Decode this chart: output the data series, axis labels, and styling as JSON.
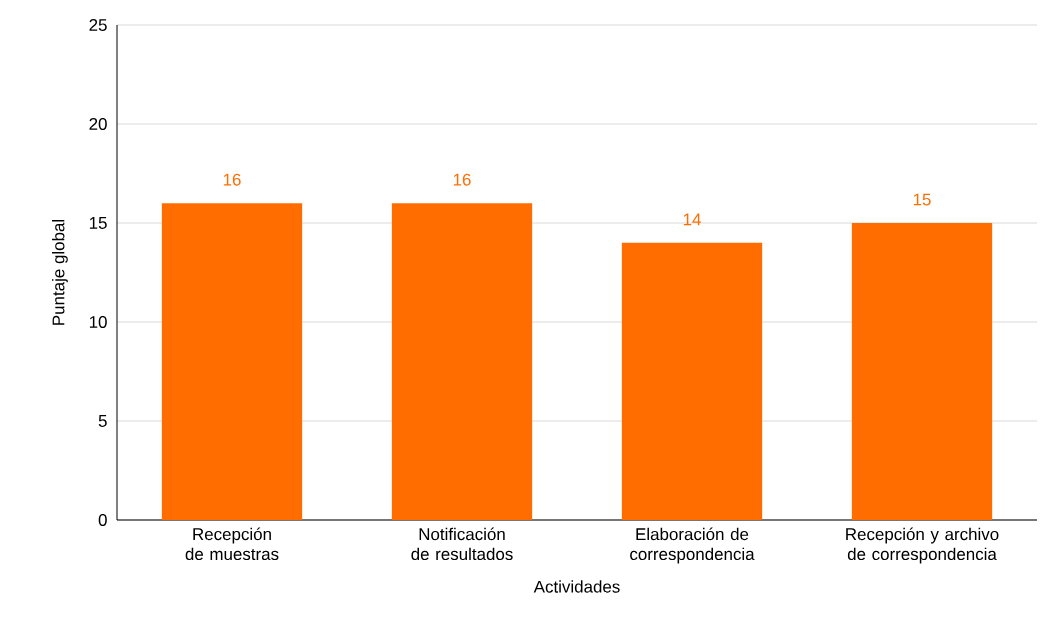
{
  "chart_data": {
    "type": "bar",
    "xlabel": "Actividades",
    "ylabel": "Puntaje global",
    "categories": [
      "Recepción de muestras",
      "Notificación de resultados",
      "Elaboración de correspondencia",
      "Recepción y archivo de correspondencia"
    ],
    "values": [
      16,
      16,
      14,
      15
    ],
    "color": "#ff6d00",
    "ylim": [
      0,
      25
    ],
    "yticks": [
      0,
      5,
      10,
      15,
      20,
      25
    ],
    "grid": "y",
    "data_labels": true
  }
}
